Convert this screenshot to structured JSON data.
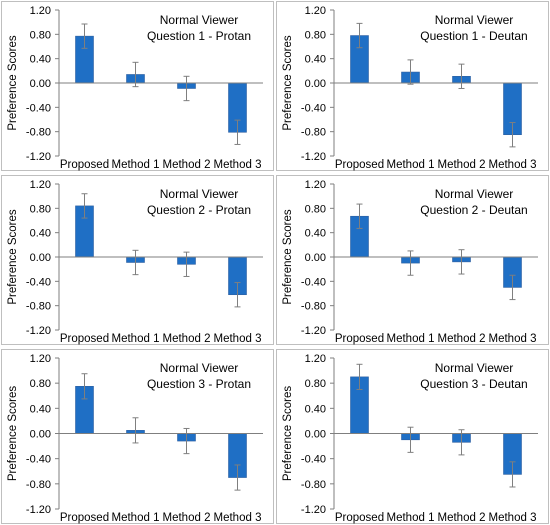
{
  "colors": {
    "bar": "#1f6fc5",
    "bar_edge": "#2f5f9f",
    "axis": "#7f7f7f",
    "error": "#7f7f7f",
    "text": "#000000",
    "frame": "#bfbfbf"
  },
  "chart_data": [
    {
      "type": "bar",
      "title": "Normal Viewer",
      "subtitle": "Question 1 - Protan",
      "ylabel": "Preference Scores",
      "categories": [
        "Proposed",
        "Method 1",
        "Method 2",
        "Method 3"
      ],
      "values": [
        0.77,
        0.14,
        -0.09,
        -0.81
      ],
      "errors": [
        0.2,
        0.2,
        0.2,
        0.2
      ],
      "ylim": [
        -1.2,
        1.2
      ],
      "yticks": [
        "1.20",
        "0.80",
        "0.40",
        "0.00",
        "-0.40",
        "-0.80",
        "-1.20"
      ],
      "grid": false
    },
    {
      "type": "bar",
      "title": "Normal Viewer",
      "subtitle": "Question 1 - Deutan",
      "ylabel": "Preference Scores",
      "categories": [
        "Proposed",
        "Method 1",
        "Method 2",
        "Method 3"
      ],
      "values": [
        0.78,
        0.18,
        0.11,
        -0.85
      ],
      "errors": [
        0.2,
        0.2,
        0.2,
        0.2
      ],
      "ylim": [
        -1.2,
        1.2
      ],
      "yticks": [
        "1.20",
        "0.80",
        "0.40",
        "0.00",
        "-0.40",
        "-0.80",
        "-1.20"
      ],
      "grid": false
    },
    {
      "type": "bar",
      "title": "Normal Viewer",
      "subtitle": "Question 2 - Protan",
      "ylabel": "Preference Scores",
      "categories": [
        "Proposed",
        "Method 1",
        "Method 2",
        "Method 3"
      ],
      "values": [
        0.84,
        -0.09,
        -0.12,
        -0.62
      ],
      "errors": [
        0.2,
        0.2,
        0.2,
        0.2
      ],
      "ylim": [
        -1.2,
        1.2
      ],
      "yticks": [
        "1.20",
        "0.80",
        "0.40",
        "0.00",
        "-0.40",
        "-0.80",
        "-1.20"
      ],
      "grid": false
    },
    {
      "type": "bar",
      "title": "Normal Viewer",
      "subtitle": "Question 2 - Deutan",
      "ylabel": "Preference Scores",
      "categories": [
        "Proposed",
        "Method 1",
        "Method 2",
        "Method 3"
      ],
      "values": [
        0.67,
        -0.1,
        -0.08,
        -0.5
      ],
      "errors": [
        0.2,
        0.2,
        0.2,
        0.2
      ],
      "ylim": [
        -1.2,
        1.2
      ],
      "yticks": [
        "1.20",
        "0.80",
        "0.40",
        "0.00",
        "-0.40",
        "-0.80",
        "-1.20"
      ],
      "grid": false
    },
    {
      "type": "bar",
      "title": "Normal Viewer",
      "subtitle": "Question 3 - Protan",
      "ylabel": "Preference Scores",
      "categories": [
        "Proposed",
        "Method 1",
        "Method 2",
        "Method 3"
      ],
      "values": [
        0.75,
        0.05,
        -0.12,
        -0.7
      ],
      "errors": [
        0.2,
        0.2,
        0.2,
        0.2
      ],
      "ylim": [
        -1.2,
        1.2
      ],
      "yticks": [
        "1.20",
        "0.80",
        "0.40",
        "0.00",
        "-0.40",
        "-0.80",
        "-1.20"
      ],
      "grid": false
    },
    {
      "type": "bar",
      "title": "Normal Viewer",
      "subtitle": "Question 3 - Deutan",
      "ylabel": "Preference Scores",
      "categories": [
        "Proposed",
        "Method 1",
        "Method 2",
        "Method 3"
      ],
      "values": [
        0.9,
        -0.1,
        -0.14,
        -0.65
      ],
      "errors": [
        0.2,
        0.2,
        0.2,
        0.2
      ],
      "ylim": [
        -1.2,
        1.2
      ],
      "yticks": [
        "1.20",
        "0.80",
        "0.40",
        "0.00",
        "-0.40",
        "-0.80",
        "-1.20"
      ],
      "grid": false
    }
  ]
}
